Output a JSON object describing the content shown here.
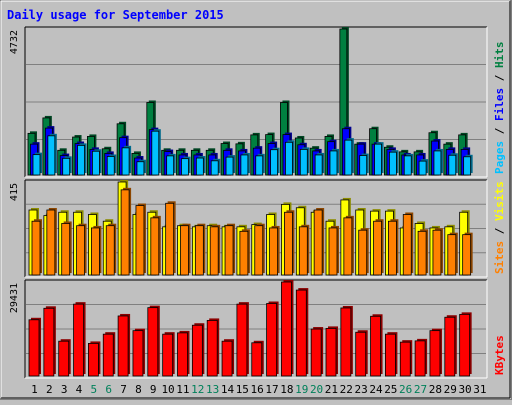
{
  "chart_data": [
    {
      "type": "bar",
      "title": "Daily usage for September 2015",
      "categories": [
        "1",
        "2",
        "3",
        "4",
        "5",
        "6",
        "7",
        "8",
        "9",
        "10",
        "11",
        "12",
        "13",
        "14",
        "15",
        "16",
        "17",
        "18",
        "19",
        "20",
        "21",
        "22",
        "23",
        "24",
        "25",
        "26",
        "27",
        "28",
        "29",
        "30",
        "31"
      ],
      "weekend_days": [
        "5",
        "6",
        "12",
        "13",
        "19",
        "20",
        "26",
        "27"
      ],
      "ymax_label": "4732",
      "ylim": [
        0,
        4732
      ],
      "ylabel_parts": [
        "Pages",
        "Files",
        "Hits"
      ],
      "series": [
        {
          "name": "Hits",
          "color": "#008040",
          "values": [
            1350,
            1850,
            800,
            1230,
            1250,
            850,
            1660,
            700,
            2350,
            800,
            800,
            800,
            800,
            1020,
            1010,
            1300,
            1310,
            2350,
            1200,
            870,
            1250,
            4732,
            1000,
            1500,
            900,
            750,
            750,
            1370,
            1000,
            1300,
            0
          ]
        },
        {
          "name": "Files",
          "color": "#0000ff",
          "values": [
            1000,
            1520,
            630,
            1020,
            830,
            700,
            1210,
            550,
            1470,
            760,
            650,
            650,
            650,
            800,
            780,
            870,
            1020,
            1310,
            980,
            780,
            1080,
            1500,
            1000,
            1000,
            830,
            650,
            650,
            1100,
            830,
            830,
            0
          ]
        },
        {
          "name": "Pages",
          "color": "#00c0ff",
          "values": [
            660,
            1270,
            540,
            960,
            770,
            600,
            880,
            430,
            1420,
            620,
            530,
            550,
            460,
            580,
            650,
            620,
            820,
            1060,
            830,
            650,
            780,
            1130,
            630,
            1000,
            740,
            620,
            450,
            780,
            640,
            590,
            0
          ]
        }
      ]
    },
    {
      "type": "bar",
      "categories": [
        "1",
        "2",
        "3",
        "4",
        "5",
        "6",
        "7",
        "8",
        "9",
        "10",
        "11",
        "12",
        "13",
        "14",
        "15",
        "16",
        "17",
        "18",
        "19",
        "20",
        "21",
        "22",
        "23",
        "24",
        "25",
        "26",
        "27",
        "28",
        "29",
        "30",
        "31"
      ],
      "ymax_label": "415",
      "ylim": [
        0,
        415
      ],
      "ylabel_parts": [
        "Sites",
        "Visits"
      ],
      "series": [
        {
          "name": "Visits",
          "color": "#ffff00",
          "values": [
            290,
            265,
            280,
            280,
            270,
            240,
            415,
            270,
            280,
            215,
            220,
            215,
            220,
            215,
            215,
            225,
            270,
            315,
            300,
            280,
            240,
            335,
            290,
            285,
            285,
            210,
            230,
            210,
            215,
            280,
            0
          ]
        },
        {
          "name": "Sites",
          "color": "#ff8000",
          "values": [
            240,
            290,
            230,
            220,
            210,
            220,
            380,
            310,
            255,
            320,
            220,
            220,
            215,
            220,
            195,
            220,
            210,
            280,
            215,
            290,
            210,
            255,
            200,
            240,
            240,
            270,
            195,
            200,
            180,
            180,
            0
          ]
        }
      ]
    },
    {
      "type": "bar",
      "categories": [
        "1",
        "2",
        "3",
        "4",
        "5",
        "6",
        "7",
        "8",
        "9",
        "10",
        "11",
        "12",
        "13",
        "14",
        "15",
        "16",
        "17",
        "18",
        "19",
        "20",
        "21",
        "22",
        "23",
        "24",
        "25",
        "26",
        "27",
        "28",
        "29",
        "30",
        "31"
      ],
      "ymax_label": "29431",
      "ylim": [
        0,
        29431
      ],
      "ylabel_parts": [
        "KBytes"
      ],
      "series": [
        {
          "name": "KBytes",
          "color": "#ff0000",
          "values": [
            17600,
            21200,
            10900,
            22500,
            10200,
            13100,
            18800,
            14200,
            21400,
            13100,
            13500,
            15900,
            17400,
            10900,
            22500,
            10400,
            22700,
            29431,
            26900,
            14700,
            14900,
            21300,
            13700,
            18700,
            13100,
            10600,
            11000,
            14200,
            18400,
            19300,
            0
          ]
        }
      ]
    }
  ]
}
